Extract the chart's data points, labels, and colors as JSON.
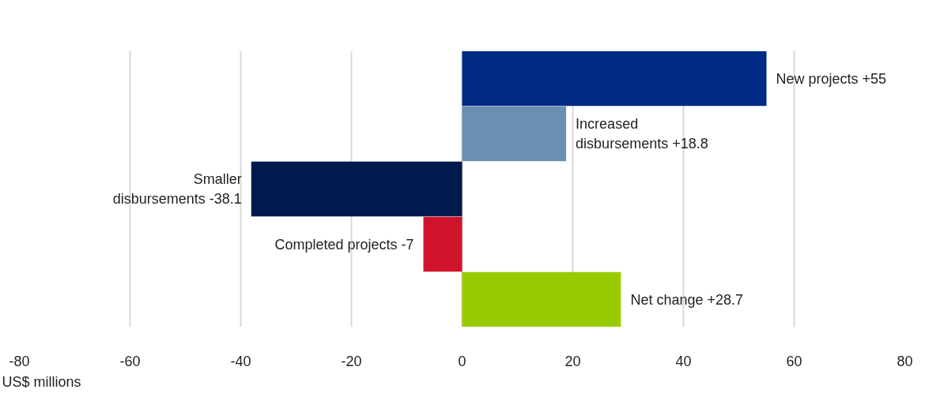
{
  "chart_data": {
    "type": "bar",
    "orientation": "horizontal",
    "xlabel": "US$ millions",
    "categories": [
      "New projects",
      "Increased disbursements",
      "Smaller disbursements",
      "Completed projects",
      "Net change"
    ],
    "values": [
      55,
      18.8,
      -38.1,
      -7,
      28.7
    ],
    "value_labels": [
      "+55",
      "+18.8",
      "-38.1",
      "-7",
      "+28.7"
    ],
    "colors": [
      "#002a83",
      "#6a8fb0",
      "#001a4d",
      "#d0142c",
      "#99cc00"
    ],
    "xlim": [
      -80,
      80
    ],
    "xticks": [
      -80,
      -60,
      -40,
      -20,
      0,
      20,
      40,
      60,
      80
    ],
    "grid": "x",
    "tick_labels": "x"
  }
}
